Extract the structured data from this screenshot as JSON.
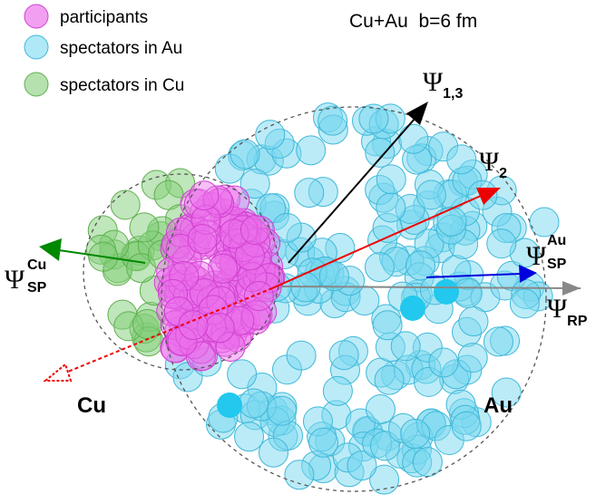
{
  "legend": [
    {
      "label": "participants"
    },
    {
      "label": "spectators in Au"
    },
    {
      "label": "spectators in Cu"
    }
  ],
  "title": "Cu+Au  b=6 fm",
  "planes": [
    {
      "symbol": "Ψ",
      "sub": "1,3"
    },
    {
      "symbol": "Ψ",
      "sub": "2"
    },
    {
      "symbol": "Ψ",
      "sup": "Au",
      "sub": "SP"
    },
    {
      "symbol": "Ψ",
      "sub": "RP"
    },
    {
      "symbol": "Ψ",
      "sup": "Cu",
      "sub": "SP"
    }
  ],
  "nuclei": [
    "Cu",
    "Au"
  ]
}
